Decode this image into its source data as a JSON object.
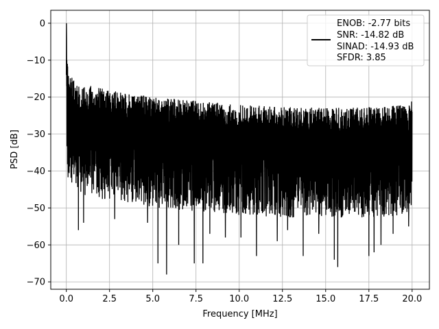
{
  "chart_data": {
    "type": "line",
    "xlabel": "Frequency [MHz]",
    "ylabel": "PSD [dB]",
    "xlim": [
      -0.9,
      21.0
    ],
    "ylim": [
      -72,
      3.5
    ],
    "x_ticks": [
      0.0,
      2.5,
      5.0,
      7.5,
      10.0,
      12.5,
      15.0,
      17.5,
      20.0
    ],
    "x_tick_labels": [
      "0.0",
      "2.5",
      "5.0",
      "7.5",
      "10.0",
      "12.5",
      "15.0",
      "17.5",
      "20.0"
    ],
    "y_ticks": [
      0,
      -10,
      -20,
      -30,
      -40,
      -50,
      -60,
      -70
    ],
    "y_tick_labels": [
      "0",
      "−10",
      "−20",
      "−30",
      "−40",
      "−50",
      "−60",
      "−70"
    ],
    "grid": true,
    "legend_position": "top-right",
    "legend_entries": [
      "ENOB: -2.77 bits",
      "SNR: -14.82 dB",
      "SINAD: -14.93 dB",
      "SFDR: 3.85"
    ],
    "series": [
      {
        "color": "#000000",
        "peak": {
          "x": 0.0,
          "y": 0
        },
        "upper_envelope": [
          {
            "x": 0.0,
            "y": -4
          },
          {
            "x": 0.1,
            "y": -13
          },
          {
            "x": 0.5,
            "y": -16
          },
          {
            "x": 2.5,
            "y": -18
          },
          {
            "x": 5.0,
            "y": -20
          },
          {
            "x": 10.0,
            "y": -22
          },
          {
            "x": 15.0,
            "y": -23
          },
          {
            "x": 19.9,
            "y": -22
          },
          {
            "x": 20.0,
            "y": -18
          }
        ],
        "deep_dips": [
          {
            "x": 0.7,
            "y": -56
          },
          {
            "x": 1.0,
            "y": -54
          },
          {
            "x": 2.8,
            "y": -53
          },
          {
            "x": 4.7,
            "y": -54
          },
          {
            "x": 5.3,
            "y": -65
          },
          {
            "x": 5.8,
            "y": -68
          },
          {
            "x": 6.5,
            "y": -60
          },
          {
            "x": 7.4,
            "y": -65
          },
          {
            "x": 7.9,
            "y": -65
          },
          {
            "x": 8.3,
            "y": -57
          },
          {
            "x": 9.2,
            "y": -58
          },
          {
            "x": 10.1,
            "y": -58
          },
          {
            "x": 11.0,
            "y": -63
          },
          {
            "x": 12.2,
            "y": -59
          },
          {
            "x": 12.8,
            "y": -56
          },
          {
            "x": 13.7,
            "y": -63
          },
          {
            "x": 14.6,
            "y": -57
          },
          {
            "x": 15.5,
            "y": -64
          },
          {
            "x": 15.7,
            "y": -66
          },
          {
            "x": 17.5,
            "y": -63
          },
          {
            "x": 17.8,
            "y": -62
          },
          {
            "x": 18.2,
            "y": -60
          },
          {
            "x": 18.9,
            "y": -57
          },
          {
            "x": 19.8,
            "y": -55
          }
        ],
        "noise_floor_mean": -30
      }
    ]
  }
}
